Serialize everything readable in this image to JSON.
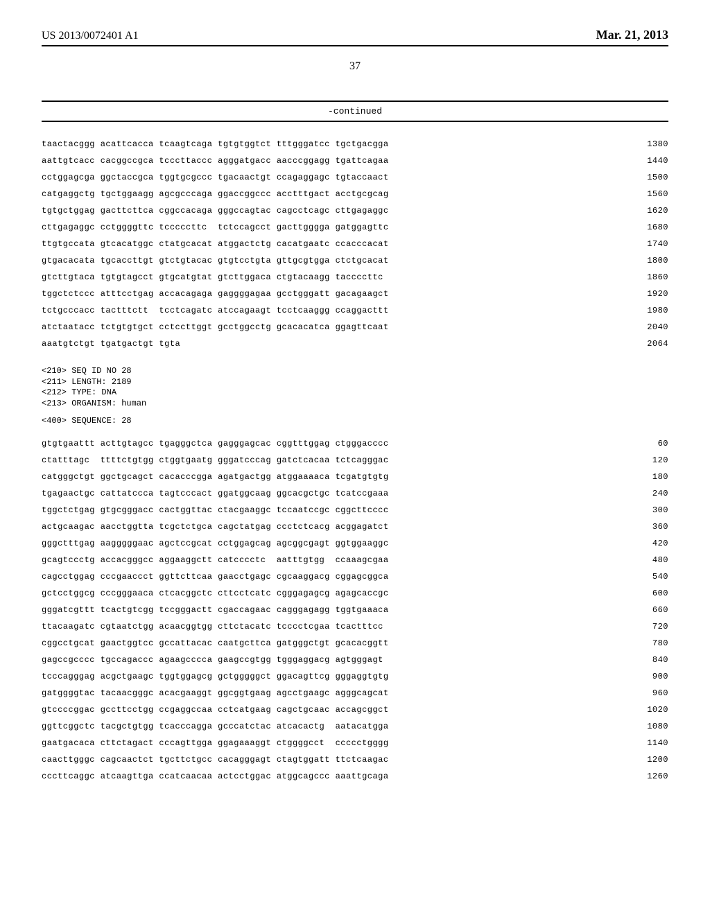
{
  "header": {
    "publication_number": "US 2013/0072401 A1",
    "publication_date": "Mar. 21, 2013",
    "page_number": "37",
    "continued_label": "-continued"
  },
  "sequence_top": {
    "lines": [
      {
        "groups": [
          "taactacggg",
          "acattcacca",
          "tcaagtcaga",
          "tgtgtggtct",
          "tttgggatcc",
          "tgctgacgga"
        ],
        "pos": 1380
      },
      {
        "groups": [
          "aattgtcacc",
          "cacggccgca",
          "tcccttaccc",
          "agggatgacc",
          "aacccggagg",
          "tgattcagaa"
        ],
        "pos": 1440
      },
      {
        "groups": [
          "cctggagcga",
          "ggctaccgca",
          "tggtgcgccc",
          "tgacaactgt",
          "ccagaggagc",
          "tgtaccaact"
        ],
        "pos": 1500
      },
      {
        "groups": [
          "catgaggctg",
          "tgctggaagg",
          "agcgcccaga",
          "ggaccggccc",
          "acctttgact",
          "acctgcgcag"
        ],
        "pos": 1560
      },
      {
        "groups": [
          "tgtgctggag",
          "gacttcttca",
          "cggccacaga",
          "gggccagtac",
          "cagcctcagc",
          "cttgagaggc"
        ],
        "pos": 1620
      },
      {
        "groups": [
          "cttgagaggc",
          "cctggggttc",
          "tcccccttc",
          "tctccagcct",
          "gacttgggga",
          "gatggagttc"
        ],
        "pos": 1680
      },
      {
        "groups": [
          "ttgtgccata",
          "gtcacatggc",
          "ctatgcacat",
          "atggactctg",
          "cacatgaatc",
          "ccacccacat"
        ],
        "pos": 1740
      },
      {
        "groups": [
          "gtgacacata",
          "tgcaccttgt",
          "gtctgtacac",
          "gtgtcctgta",
          "gttgcgtgga",
          "ctctgcacat"
        ],
        "pos": 1800
      },
      {
        "groups": [
          "gtcttgtaca",
          "tgtgtagcct",
          "gtgcatgtat",
          "gtcttggaca",
          "ctgtacaagg",
          "taccccttc"
        ],
        "pos": 1860
      },
      {
        "groups": [
          "tggctctccc",
          "atttcctgag",
          "accacagaga",
          "gaggggagaa",
          "gcctgggatt",
          "gacagaagct"
        ],
        "pos": 1920
      },
      {
        "groups": [
          "tctgcccacc",
          "tactttctt",
          "tcctcagatc",
          "atccagaagt",
          "tcctcaaggg",
          "ccaggacttt"
        ],
        "pos": 1980
      },
      {
        "groups": [
          "atctaatacc",
          "tctgtgtgct",
          "cctccttggt",
          "gcctggcctg",
          "gcacacatca",
          "ggagttcaat"
        ],
        "pos": 2040
      },
      {
        "groups": [
          "aaatgtctgt",
          "tgatgactgt",
          "tgta"
        ],
        "pos": 2064
      }
    ]
  },
  "meta": {
    "lines": [
      "<210> SEQ ID NO 28",
      "<211> LENGTH: 2189",
      "<212> TYPE: DNA",
      "<213> ORGANISM: human"
    ],
    "sequence_header": "<400> SEQUENCE: 28"
  },
  "sequence_bottom": {
    "lines": [
      {
        "groups": [
          "gtgtgaattt",
          "acttgtagcc",
          "tgagggctca",
          "gagggagcac",
          "cggtttggag",
          "ctgggacccc"
        ],
        "pos": 60
      },
      {
        "groups": [
          "ctatttagc",
          "ttttctgtgg",
          "ctggtgaatg",
          "gggatcccag",
          "gatctcacaa",
          "tctcagggac"
        ],
        "pos": 120
      },
      {
        "groups": [
          "catgggctgt",
          "ggctgcagct",
          "cacacccgga",
          "agatgactgg",
          "atggaaaaca",
          "tcgatgtgtg"
        ],
        "pos": 180
      },
      {
        "groups": [
          "tgagaactgc",
          "cattatccca",
          "tagtcccact",
          "ggatggcaag",
          "ggcacgctgc",
          "tcatccgaaa"
        ],
        "pos": 240
      },
      {
        "groups": [
          "tggctctgag",
          "gtgcgggacc",
          "cactggttac",
          "ctacgaaggc",
          "tccaatccgc",
          "cggcttcccc"
        ],
        "pos": 300
      },
      {
        "groups": [
          "actgcaagac",
          "aacctggtta",
          "tcgctctgca",
          "cagctatgag",
          "ccctctcacg",
          "acggagatct"
        ],
        "pos": 360
      },
      {
        "groups": [
          "gggctttgag",
          "aagggggaac",
          "agctccgcat",
          "cctggagcag",
          "agcggcgagt",
          "ggtggaaggc"
        ],
        "pos": 420
      },
      {
        "groups": [
          "gcagtccctg",
          "accacgggcc",
          "aggaaggctt",
          "catcccctc",
          "aatttgtgg",
          "ccaaagcgaa"
        ],
        "pos": 480
      },
      {
        "groups": [
          "cagcctggag",
          "cccgaaccct",
          "ggttcttcaa",
          "gaacctgagc",
          "cgcaaggacg",
          "cggagcggca"
        ],
        "pos": 540
      },
      {
        "groups": [
          "gctcctggcg",
          "cccgggaaca",
          "ctcacggctc",
          "cttcctcatc",
          "cgggagagcg",
          "agagcaccgc"
        ],
        "pos": 600
      },
      {
        "groups": [
          "gggatcgttt",
          "tcactgtcgg",
          "tccgggactt",
          "cgaccagaac",
          "cagggagagg",
          "tggtgaaaca"
        ],
        "pos": 660
      },
      {
        "groups": [
          "ttacaagatc",
          "cgtaatctgg",
          "acaacggtgg",
          "cttctacatc",
          "tcccctcgaa",
          "tcactttcc"
        ],
        "pos": 720
      },
      {
        "groups": [
          "cggcctgcat",
          "gaactggtcc",
          "gccattacac",
          "caatgcttca",
          "gatgggctgt",
          "gcacacggtt"
        ],
        "pos": 780
      },
      {
        "groups": [
          "gagccgcccc",
          "tgccagaccc",
          "agaagcccca",
          "gaagccgtgg",
          "tgggaggacg",
          "agtgggagt"
        ],
        "pos": 840
      },
      {
        "groups": [
          "tcccagggag",
          "acgctgaagc",
          "tggtggagcg",
          "gctgggggct",
          "ggacagttcg",
          "gggaggtgtg"
        ],
        "pos": 900
      },
      {
        "groups": [
          "gatggggtac",
          "tacaacgggc",
          "acacgaaggt",
          "ggcggtgaag",
          "agcctgaagc",
          "agggcagcat"
        ],
        "pos": 960
      },
      {
        "groups": [
          "gtccccggac",
          "gccttcctgg",
          "ccgaggccaa",
          "cctcatgaag",
          "cagctgcaac",
          "accagcggct"
        ],
        "pos": 1020
      },
      {
        "groups": [
          "ggttcggctc",
          "tacgctgtgg",
          "tcacccagga",
          "gcccatctac",
          "atcacactg",
          "aatacatgga"
        ],
        "pos": 1080
      },
      {
        "groups": [
          "gaatgacaca",
          "cttctagact",
          "cccagttgga",
          "ggagaaaggt",
          "ctggggcct",
          "ccccctgggg"
        ],
        "pos": 1140
      },
      {
        "groups": [
          "caacttgggc",
          "cagcaactct",
          "tgcttctgcc",
          "cacagggagt",
          "ctagtggatt",
          "ttctcaagac"
        ],
        "pos": 1200
      },
      {
        "groups": [
          "cccttcaggc",
          "atcaagttga",
          "ccatcaacaa",
          "actcctggac",
          "atggcagccc",
          "aaattgcaga"
        ],
        "pos": 1260
      }
    ]
  }
}
